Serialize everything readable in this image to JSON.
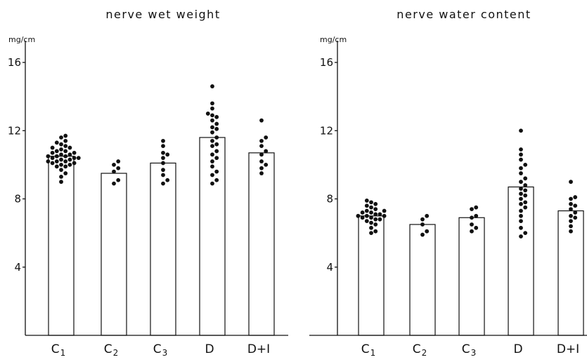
{
  "chart_data": [
    {
      "type": "bar",
      "title": "nerve wet weight",
      "ylabel": "mg/cm",
      "ylim": [
        0,
        16
      ],
      "yticks": [
        "4",
        "8",
        "12",
        "16"
      ],
      "categories": [
        {
          "main": "C",
          "sub": "1"
        },
        {
          "main": "C",
          "sub": "2"
        },
        {
          "main": "C",
          "sub": "3"
        },
        {
          "main": "D",
          "sub": ""
        },
        {
          "main": "D+I",
          "sub": ""
        }
      ],
      "values": [
        10.5,
        9.5,
        10.1,
        11.6,
        10.7
      ],
      "points": [
        [
          9.0,
          9.3,
          9.5,
          9.7,
          9.9,
          9.9,
          10.0,
          10.0,
          10.1,
          10.1,
          10.2,
          10.2,
          10.2,
          10.3,
          10.3,
          10.4,
          10.4,
          10.4,
          10.5,
          10.5,
          10.5,
          10.6,
          10.6,
          10.7,
          10.7,
          10.8,
          10.8,
          10.9,
          11.0,
          11.0,
          11.1,
          11.2,
          11.3,
          11.4,
          11.6,
          11.7
        ],
        [
          8.9,
          9.1,
          9.6,
          9.8,
          10.0,
          10.2
        ],
        [
          8.9,
          9.1,
          9.4,
          9.7,
          10.1,
          10.4,
          10.6,
          10.7,
          11.1,
          11.4
        ],
        [
          8.9,
          9.1,
          9.4,
          9.6,
          9.9,
          10.2,
          10.4,
          10.6,
          10.8,
          11.1,
          11.2,
          11.4,
          11.6,
          11.9,
          12.1,
          12.2,
          12.4,
          12.6,
          12.8,
          12.9,
          13.0,
          13.3,
          13.6,
          14.6
        ],
        [
          9.5,
          9.8,
          10.0,
          10.2,
          10.6,
          10.8,
          11.1,
          11.4,
          11.6,
          12.6
        ]
      ]
    },
    {
      "type": "bar",
      "title": "nerve water content",
      "ylabel": "mg/cm",
      "ylim": [
        0,
        16
      ],
      "yticks": [
        "4",
        "8",
        "12",
        "16"
      ],
      "categories": [
        {
          "main": "C",
          "sub": "1"
        },
        {
          "main": "C",
          "sub": "2"
        },
        {
          "main": "C",
          "sub": "3"
        },
        {
          "main": "D",
          "sub": ""
        },
        {
          "main": "D+I",
          "sub": ""
        }
      ],
      "values": [
        7.0,
        6.5,
        6.9,
        8.7,
        7.3
      ],
      "points": [
        [
          6.0,
          6.1,
          6.3,
          6.5,
          6.6,
          6.7,
          6.8,
          6.8,
          6.9,
          6.9,
          7.0,
          7.0,
          7.0,
          7.1,
          7.1,
          7.2,
          7.2,
          7.3,
          7.3,
          7.4,
          7.5,
          7.6,
          7.7,
          7.8,
          7.9
        ],
        [
          5.9,
          6.1,
          6.5,
          6.8,
          7.0
        ],
        [
          6.1,
          6.3,
          6.5,
          6.9,
          7.0,
          7.4,
          7.5
        ],
        [
          5.8,
          6.0,
          6.3,
          6.7,
          7.0,
          7.3,
          7.5,
          7.7,
          7.8,
          8.0,
          8.2,
          8.3,
          8.5,
          8.6,
          8.8,
          9.0,
          9.2,
          9.5,
          9.8,
          10.0,
          10.3,
          10.6,
          10.9,
          12.0
        ],
        [
          6.1,
          6.4,
          6.7,
          6.9,
          7.0,
          7.2,
          7.4,
          7.6,
          7.7,
          8.0,
          8.1,
          9.0
        ]
      ]
    }
  ]
}
